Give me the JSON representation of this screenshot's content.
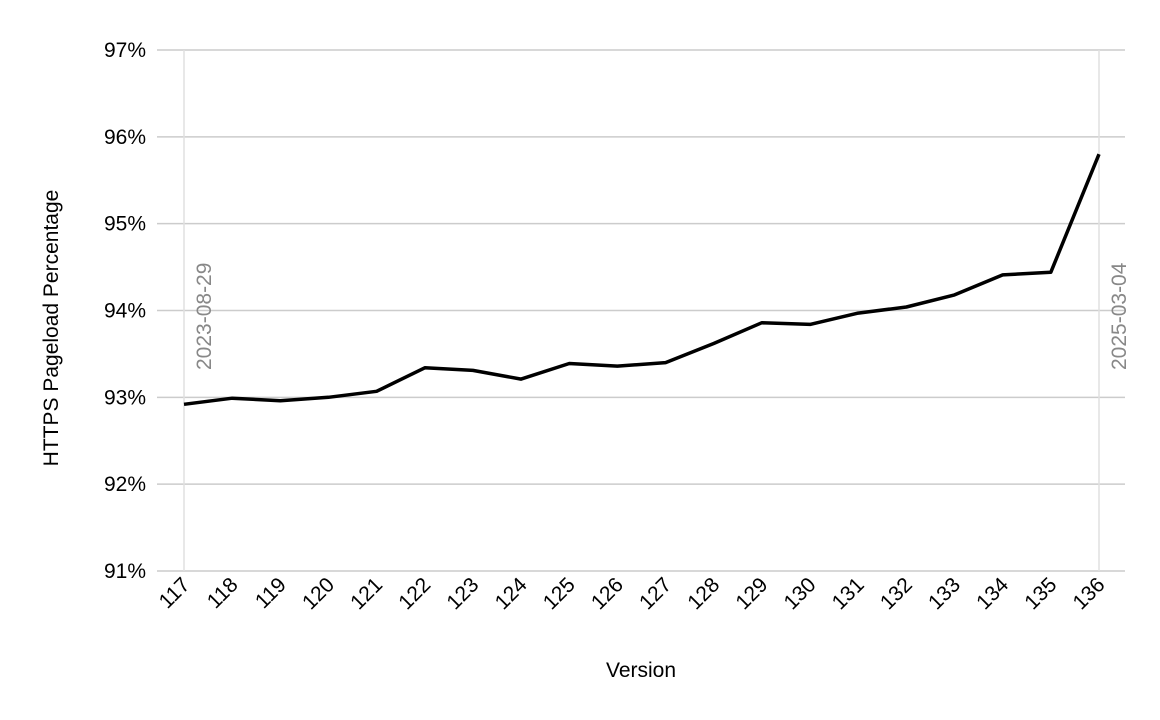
{
  "chart_data": {
    "type": "line",
    "title": "",
    "xlabel": "Version",
    "ylabel": "HTTPS Pageload Percentage",
    "categories": [
      "117",
      "118",
      "119",
      "120",
      "121",
      "122",
      "123",
      "124",
      "125",
      "126",
      "127",
      "128",
      "129",
      "130",
      "131",
      "132",
      "133",
      "134",
      "135",
      "136"
    ],
    "series": [
      {
        "values": [
          92.92,
          92.99,
          92.96,
          93.0,
          93.07,
          93.34,
          93.31,
          93.21,
          93.39,
          93.36,
          93.4,
          93.62,
          93.86,
          93.84,
          93.97,
          94.04,
          94.18,
          94.41,
          94.44,
          95.8
        ],
        "color": "#000000"
      }
    ],
    "ylim": [
      91,
      97
    ],
    "yticks": [
      91,
      92,
      93,
      94,
      95,
      96,
      97
    ],
    "ytick_suffix": "%",
    "grid": true,
    "legend": "none",
    "annotations": [
      {
        "category": "117",
        "label": "2023-08-29"
      },
      {
        "category": "136",
        "label": "2025-03-04"
      }
    ],
    "colors": {
      "line": "#000000",
      "gridline": "#cccccc",
      "marker_line": "#e0e0e0",
      "marker_text": "#888888"
    }
  }
}
